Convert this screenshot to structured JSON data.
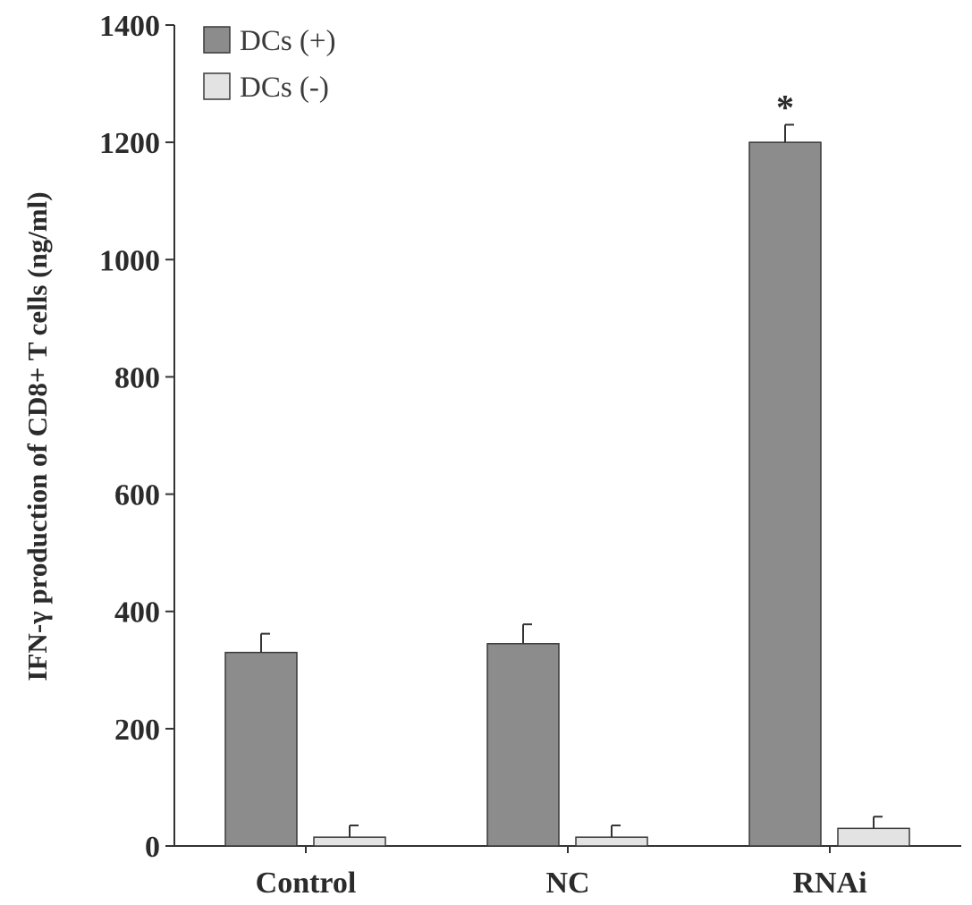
{
  "chart_data": {
    "type": "bar",
    "ylabel": "IFN-γ production of CD8+ T cells (ng/ml)",
    "xlabel": "",
    "ylim": [
      0,
      1400
    ],
    "yticks": [
      0,
      200,
      400,
      600,
      800,
      1000,
      1200,
      1400
    ],
    "categories": [
      "Control",
      "NC",
      "RNAi"
    ],
    "series": [
      {
        "name": "DCs (+)",
        "values": [
          330,
          345,
          1200
        ],
        "errors": [
          32,
          33,
          30
        ],
        "color": "#8c8c8c"
      },
      {
        "name": "DCs (-)",
        "values": [
          15,
          15,
          30
        ],
        "errors": [
          20,
          20,
          20
        ],
        "color": "#e3e3e3"
      }
    ],
    "annotations": [
      {
        "text": "*",
        "category": "RNAi",
        "series": "DCs (+)"
      }
    ],
    "legend_position": "top-left",
    "grid": false
  }
}
